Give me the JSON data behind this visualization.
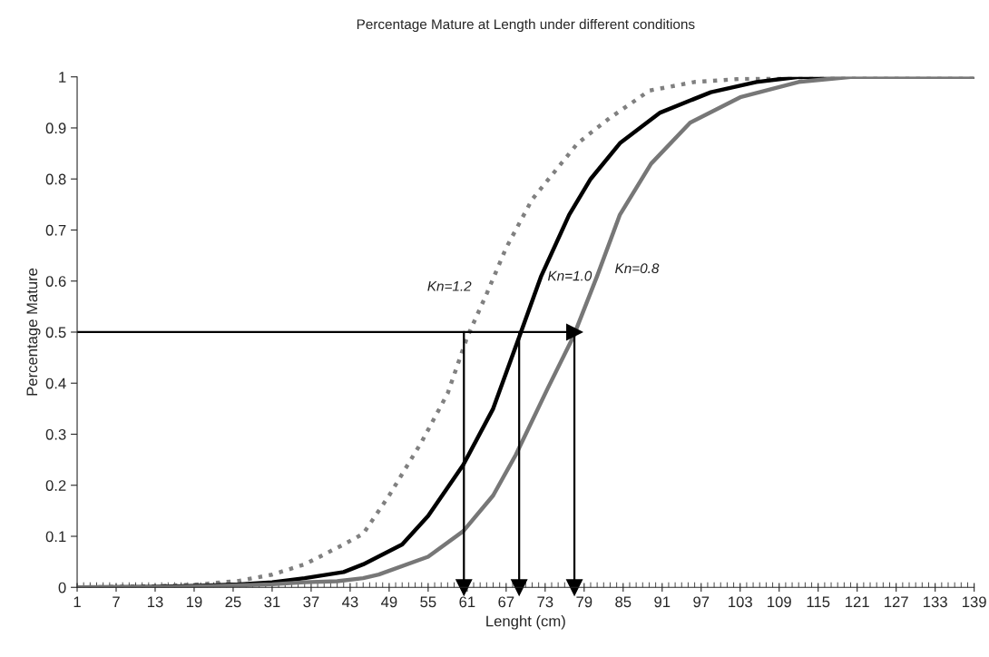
{
  "chart_data": {
    "type": "line",
    "title": "Percentage Mature at Length under different conditions",
    "xlabel": "Lenght (cm)",
    "ylabel": "Percentage Mature",
    "xlim": [
      1,
      139
    ],
    "xticks": [
      1,
      7,
      13,
      19,
      25,
      31,
      37,
      43,
      49,
      55,
      61,
      67,
      73,
      79,
      85,
      91,
      97,
      103,
      109,
      115,
      121,
      127,
      133,
      139
    ],
    "ylim": [
      0,
      1
    ],
    "yticks": [
      0,
      0.1,
      0.2,
      0.3,
      0.4,
      0.5,
      0.6,
      0.7,
      0.8,
      0.9,
      1
    ],
    "grid": false,
    "legend": false,
    "series": [
      {
        "name": "Kn=1.2",
        "color": "#808080",
        "line_style": "dotted",
        "x": [
          1,
          13,
          20,
          26,
          31,
          36,
          42,
          45,
          49,
          54,
          58,
          61,
          64,
          67,
          71,
          78,
          83,
          87,
          89,
          96,
          103,
          115,
          127,
          139
        ],
        "values": [
          0,
          0.002,
          0.006,
          0.013,
          0.025,
          0.045,
          0.084,
          0.105,
          0.18,
          0.285,
          0.38,
          0.49,
          0.575,
          0.665,
          0.76,
          0.87,
          0.92,
          0.955,
          0.973,
          0.99,
          0.996,
          1,
          1,
          1
        ]
      },
      {
        "name": "Kn=1.0",
        "color": "#000000",
        "line_style": "solid",
        "x": [
          1,
          13,
          20,
          26,
          31,
          36,
          42,
          45,
          51,
          55,
          60.4,
          65,
          69,
          72.4,
          76.7,
          80,
          84.5,
          90.7,
          98.5,
          105.5,
          112,
          127,
          139
        ],
        "values": [
          0,
          0.001,
          0.003,
          0.006,
          0.01,
          0.018,
          0.03,
          0.045,
          0.084,
          0.14,
          0.24,
          0.35,
          0.49,
          0.61,
          0.73,
          0.8,
          0.87,
          0.93,
          0.97,
          0.99,
          1,
          1,
          1
        ]
      },
      {
        "name": "Kn=0.8",
        "color": "#777777",
        "line_style": "solid",
        "x": [
          1,
          13,
          20,
          26,
          31,
          36,
          41,
          45,
          47.4,
          55,
          60.4,
          65,
          68.5,
          73.4,
          77.3,
          81,
          84.5,
          89.3,
          95.3,
          103,
          112,
          120,
          127,
          139
        ],
        "values": [
          0,
          0,
          0.002,
          0.004,
          0.006,
          0.01,
          0.012,
          0.018,
          0.025,
          0.06,
          0.11,
          0.18,
          0.26,
          0.39,
          0.49,
          0.61,
          0.73,
          0.83,
          0.91,
          0.96,
          0.99,
          1,
          1,
          1
        ]
      }
    ],
    "ref_lines": [
      {
        "axis": "y",
        "value": 0.5
      },
      {
        "axis": "x",
        "value": 60.5
      },
      {
        "axis": "x",
        "value": 69
      },
      {
        "axis": "x",
        "value": 77.5
      }
    ]
  }
}
